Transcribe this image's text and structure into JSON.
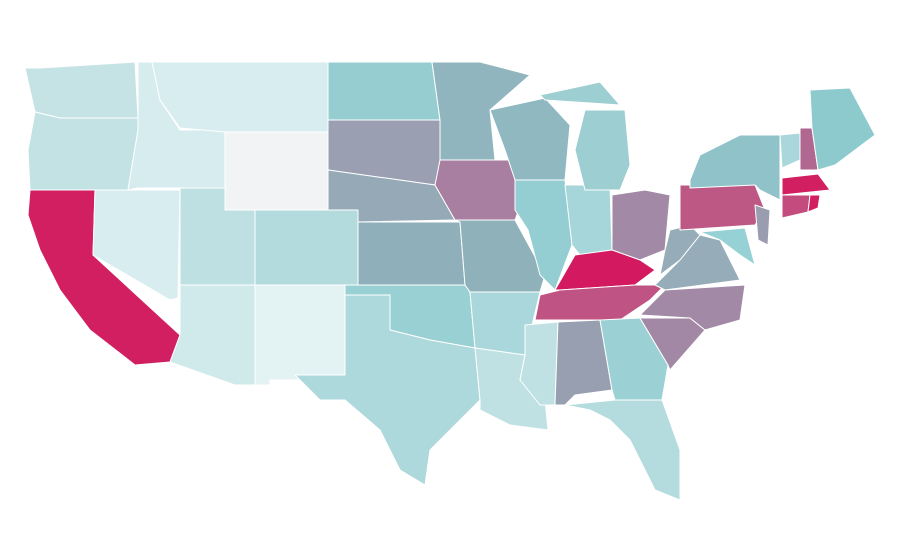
{
  "map": {
    "background": "#ffffff",
    "border_color": "#ffffff",
    "regions": [
      {
        "color": "#c5e3e5"
      },
      {
        "color": "#c3e2e4"
      },
      {
        "color": "#d21f62"
      },
      {
        "color": "#d8edef"
      },
      {
        "color": "#d6ecef"
      },
      {
        "color": "#d8edef"
      },
      {
        "color": "#f1f3f4"
      },
      {
        "color": "#bfe0e2"
      },
      {
        "color": "#d0e9eb"
      },
      {
        "color": "#b3dadd"
      },
      {
        "color": "#e3f2f3"
      },
      {
        "color": "#96cdd0"
      },
      {
        "color": "#9aa0b2"
      },
      {
        "color": "#95aab6"
      },
      {
        "color": "#8fb0ba"
      },
      {
        "color": "#99d0d3"
      },
      {
        "color": "#add8dc"
      },
      {
        "color": "#90b5bf"
      },
      {
        "color": "#a87fa0"
      },
      {
        "color": "#8fb1ba"
      },
      {
        "color": "#a9d7db"
      },
      {
        "color": "#bfe1e3"
      },
      {
        "color": "#8fb8c1"
      },
      {
        "color": "#94ced3"
      },
      {
        "color": "#a7d6da"
      },
      {
        "color": "#9cced2"
      },
      {
        "color": "#a28aa6"
      },
      {
        "color": "#d3195f"
      },
      {
        "color": "#bf5383"
      },
      {
        "color": "#bfe1e3"
      },
      {
        "color": "#989fb1"
      },
      {
        "color": "#9bd0d4"
      },
      {
        "color": "#b4dcdf"
      },
      {
        "color": "#a388a5"
      },
      {
        "color": "#a28aa6"
      },
      {
        "color": "#96acb8"
      },
      {
        "color": "#96acb8"
      },
      {
        "color": "#bd5885"
      },
      {
        "color": "#8fc2c9"
      },
      {
        "color": "#95d1d5"
      },
      {
        "color": "#9a9db0"
      },
      {
        "color": "#a9d7db"
      },
      {
        "color": "#b06790"
      },
      {
        "color": "#8ccacd"
      },
      {
        "color": "#d21f62"
      },
      {
        "color": "#c44b7d"
      },
      {
        "color": "#d21f62"
      }
    ]
  }
}
